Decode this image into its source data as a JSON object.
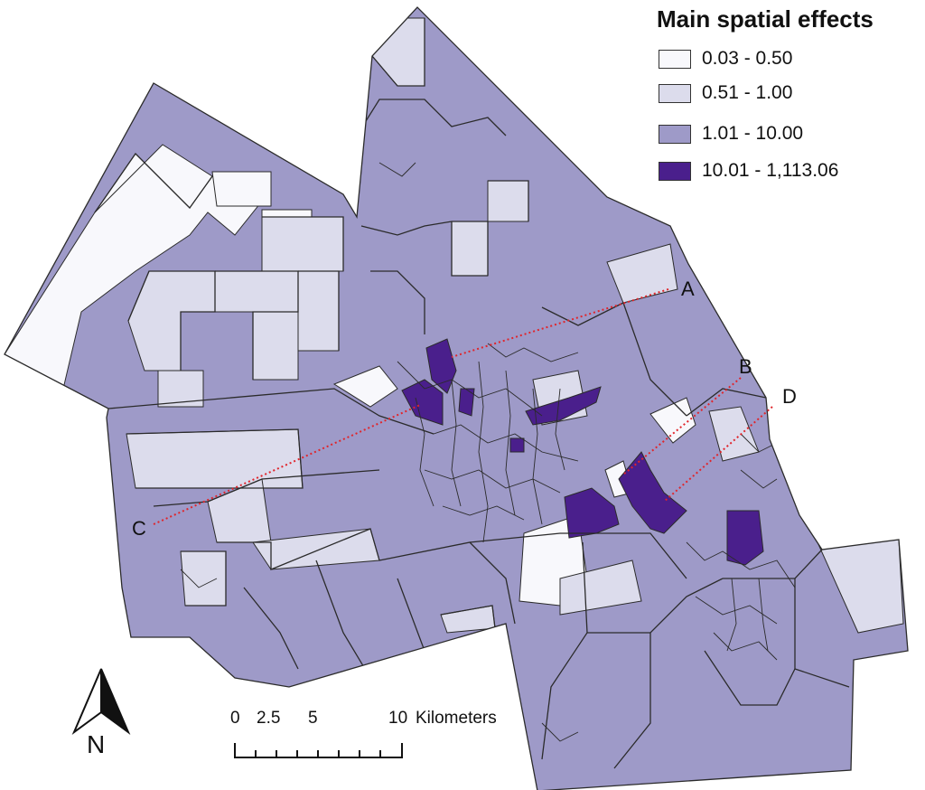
{
  "legend": {
    "title": "Main spatial effects",
    "classes": [
      {
        "label": "0.03 - 0.50",
        "color": "#f8f8fc"
      },
      {
        "label": "0.51 - 1.00",
        "color": "#dcdcec"
      },
      {
        "label": "1.01 - 10.00",
        "color": "#9e9ac8"
      },
      {
        "label": "10.01 - 1,113.06",
        "color": "#4a1f8c"
      }
    ]
  },
  "callouts": [
    "A",
    "B",
    "C",
    "D"
  ],
  "north_arrow": {
    "label": "N"
  },
  "scale_bar": {
    "tick_labels": [
      "0",
      "2.5",
      "5",
      "10"
    ],
    "unit": "Kilometers"
  },
  "colors": {
    "boundary": "#2b2b2b",
    "callout_line": "#e0252b",
    "background": "#ffffff"
  }
}
